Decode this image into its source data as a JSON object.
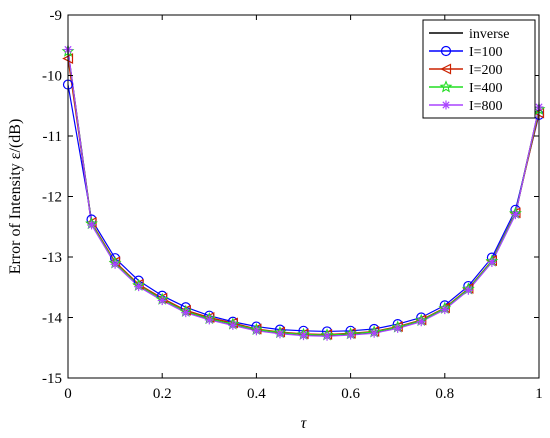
{
  "chart_data": {
    "type": "line",
    "xlabel": "τ",
    "ylabel": "Error of Intensity ε/(dB)",
    "xlim": [
      0,
      1
    ],
    "ylim": [
      -15,
      -9
    ],
    "xticks": [
      "0",
      "0.2",
      "0.4",
      "0.6",
      "0.8",
      "1"
    ],
    "yticks": [
      "-15",
      "-14",
      "-13",
      "-12",
      "-11",
      "-10",
      "-9"
    ],
    "grid": false,
    "legend_position": "top-right",
    "x": [
      0,
      0.05,
      0.1,
      0.15,
      0.2,
      0.25,
      0.3,
      0.35,
      0.4,
      0.45,
      0.5,
      0.55,
      0.6,
      0.65,
      0.7,
      0.75,
      0.8,
      0.85,
      0.9,
      0.95,
      1
    ],
    "series": [
      {
        "name": "inverse",
        "color": "#000000",
        "marker": "none",
        "values": [
          -9.6,
          -12.45,
          -13.1,
          -13.47,
          -13.7,
          -13.9,
          -14.02,
          -14.11,
          -14.2,
          -14.25,
          -14.28,
          -14.29,
          -14.27,
          -14.24,
          -14.16,
          -14.05,
          -13.85,
          -13.53,
          -13.07,
          -12.28,
          -10.55
        ]
      },
      {
        "name": "I=100",
        "color": "#0000ff",
        "marker": "circle",
        "values": [
          -10.15,
          -12.38,
          -13.02,
          -13.39,
          -13.64,
          -13.83,
          -13.97,
          -14.07,
          -14.15,
          -14.2,
          -14.22,
          -14.23,
          -14.22,
          -14.19,
          -14.11,
          -14.0,
          -13.8,
          -13.48,
          -13.01,
          -12.22,
          -10.65
        ]
      },
      {
        "name": "I=200",
        "color": "#cc2200",
        "marker": "triangle-left",
        "values": [
          -9.72,
          -12.43,
          -13.08,
          -13.45,
          -13.68,
          -13.88,
          -14.0,
          -14.09,
          -14.19,
          -14.24,
          -14.27,
          -14.28,
          -14.26,
          -14.23,
          -14.15,
          -14.04,
          -13.84,
          -13.52,
          -13.06,
          -12.27,
          -10.62
        ]
      },
      {
        "name": "I=400",
        "color": "#22dd22",
        "marker": "star",
        "values": [
          -9.6,
          -12.45,
          -13.1,
          -13.47,
          -13.7,
          -13.9,
          -14.02,
          -14.11,
          -14.2,
          -14.25,
          -14.28,
          -14.29,
          -14.27,
          -14.24,
          -14.16,
          -14.05,
          -13.85,
          -13.53,
          -13.07,
          -12.28,
          -10.56
        ]
      },
      {
        "name": "I=800",
        "color": "#aa44ff",
        "marker": "asterisk",
        "values": [
          -9.57,
          -12.47,
          -13.12,
          -13.49,
          -13.72,
          -13.92,
          -14.04,
          -14.13,
          -14.22,
          -14.27,
          -14.3,
          -14.31,
          -14.29,
          -14.26,
          -14.18,
          -14.07,
          -13.87,
          -13.55,
          -13.09,
          -12.3,
          -10.52
        ]
      }
    ]
  }
}
